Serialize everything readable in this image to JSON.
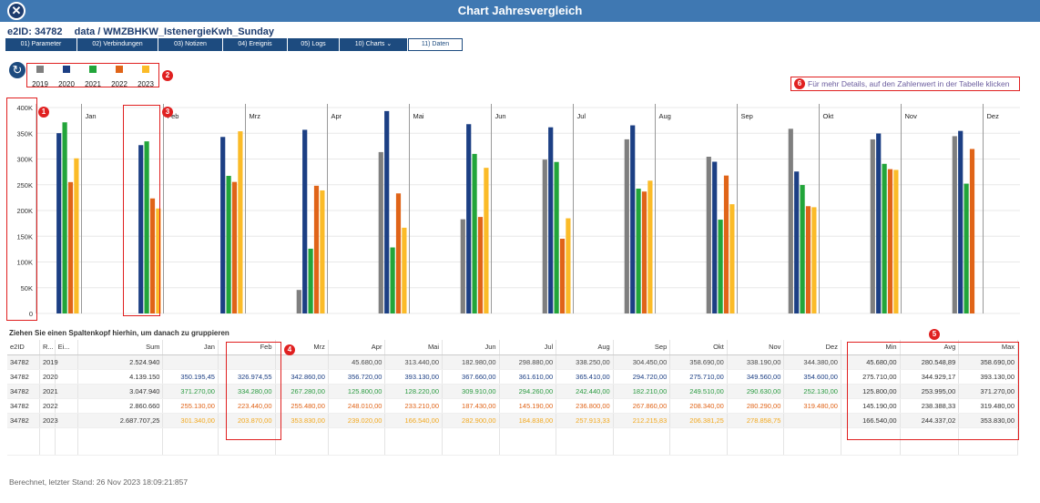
{
  "window": {
    "title": "Chart Jahresvergleich"
  },
  "record": {
    "e2id_label": "e2ID: 34782",
    "path": "data / WMZBHKW_IstenergieKwh_Sunday"
  },
  "tabs": [
    {
      "label": "01) Parameter",
      "active": false
    },
    {
      "label": "02) Verbindungen",
      "active": false
    },
    {
      "label": "03) Notizen",
      "active": false
    },
    {
      "label": "04) Ereignis",
      "active": false
    },
    {
      "label": "05) Logs",
      "active": false
    },
    {
      "label": "10) Charts",
      "active": false,
      "dropdown": true
    },
    {
      "label": "11) Daten",
      "active": true
    }
  ],
  "icons": {
    "close": "close-icon",
    "refresh": "refresh-icon",
    "dropdown": "chevron-down-icon"
  },
  "annotations": [
    "1",
    "2",
    "3",
    "4",
    "5",
    "6"
  ],
  "hint": "Für mehr Details, auf den Zahlenwert in der Tabelle  klicken",
  "chart_data": {
    "type": "bar",
    "categories": [
      "Jan",
      "Feb",
      "Mrz",
      "Apr",
      "Mai",
      "Jun",
      "Jul",
      "Aug",
      "Sep",
      "Okt",
      "Nov",
      "Dez"
    ],
    "y_ticks": [
      "0",
      "50K",
      "100K",
      "150K",
      "200K",
      "250K",
      "300K",
      "350K",
      "400K"
    ],
    "ylim": [
      0,
      400000
    ],
    "legend_position": "top-left",
    "series": [
      {
        "name": "2019",
        "color": "#7f7f7f",
        "values": [
          null,
          null,
          null,
          45680,
          313440,
          182980,
          298880,
          338250,
          304450,
          358690,
          338190,
          344380
        ]
      },
      {
        "name": "2020",
        "color": "#1c3f84",
        "values": [
          350195.45,
          326974.55,
          342860,
          356720,
          393130,
          367660,
          361610,
          365410,
          294720,
          275710,
          349560,
          354600
        ]
      },
      {
        "name": "2021",
        "color": "#22a53a",
        "values": [
          371270,
          334280,
          267280,
          125800,
          128220,
          309910,
          294260,
          242440,
          182210,
          249510,
          290630,
          252130
        ]
      },
      {
        "name": "2022",
        "color": "#e06418",
        "values": [
          255130,
          223440,
          255480,
          248010,
          233210,
          187430,
          145190,
          236800,
          267860,
          208340,
          280290,
          319480
        ]
      },
      {
        "name": "2023",
        "color": "#fbbb28",
        "values": [
          301340,
          203870,
          353830,
          239020,
          166540,
          282900,
          184838,
          257913.33,
          212215.83,
          206381.25,
          278858.75,
          null
        ]
      }
    ]
  },
  "table": {
    "group_hint": "Ziehen Sie einen Spaltenkopf hierhin, um danach zu gruppieren",
    "headers": [
      "e2ID",
      "R...",
      "Ei...",
      "Sum",
      "Jan",
      "Feb",
      "Mrz",
      "Apr",
      "Mai",
      "Jun",
      "Jul",
      "Aug",
      "Sep",
      "Okt",
      "Nov",
      "Dez",
      "Min",
      "Avg",
      "Max"
    ],
    "rows": [
      {
        "color": "#4a4a4a",
        "cells": [
          "34782",
          "2019",
          "",
          "2.524.940",
          "",
          "",
          "",
          "45.680,00",
          "313.440,00",
          "182.980,00",
          "298.880,00",
          "338.250,00",
          "304.450,00",
          "358.690,00",
          "338.190,00",
          "344.380,00",
          "45.680,00",
          "280.548,89",
          "358.690,00"
        ]
      },
      {
        "color": "#1c3f84",
        "cells": [
          "34782",
          "2020",
          "",
          "4.139.150",
          "350.195,45",
          "326.974,55",
          "342.860,00",
          "356.720,00",
          "393.130,00",
          "367.660,00",
          "361.610,00",
          "365.410,00",
          "294.720,00",
          "275.710,00",
          "349.560,00",
          "354.600,00",
          "275.710,00",
          "344.929,17",
          "393.130,00"
        ]
      },
      {
        "color": "#2a9a40",
        "cells": [
          "34782",
          "2021",
          "",
          "3.047.940",
          "371.270,00",
          "334.280,00",
          "267.280,00",
          "125.800,00",
          "128.220,00",
          "309.910,00",
          "294.260,00",
          "242.440,00",
          "182.210,00",
          "249.510,00",
          "290.630,00",
          "252.130,00",
          "125.800,00",
          "253.995,00",
          "371.270,00"
        ]
      },
      {
        "color": "#e06418",
        "cells": [
          "34782",
          "2022",
          "",
          "2.860.660",
          "255.130,00",
          "223.440,00",
          "255.480,00",
          "248.010,00",
          "233.210,00",
          "187.430,00",
          "145.190,00",
          "236.800,00",
          "267.860,00",
          "208.340,00",
          "280.290,00",
          "319.480,00",
          "145.190,00",
          "238.388,33",
          "319.480,00"
        ]
      },
      {
        "color": "#f2a81e",
        "cells": [
          "34782",
          "2023",
          "",
          "2.687.707,25",
          "301.340,00",
          "203.870,00",
          "353.830,00",
          "239.020,00",
          "166.540,00",
          "282.900,00",
          "184.838,00",
          "257.913,33",
          "212.215,83",
          "206.381,25",
          "278.858,75",
          "",
          "166.540,00",
          "244.337,02",
          "353.830,00"
        ]
      }
    ]
  },
  "footer": "Berechnet, letzter Stand: 26 Nov 2023 18:09:21:857"
}
